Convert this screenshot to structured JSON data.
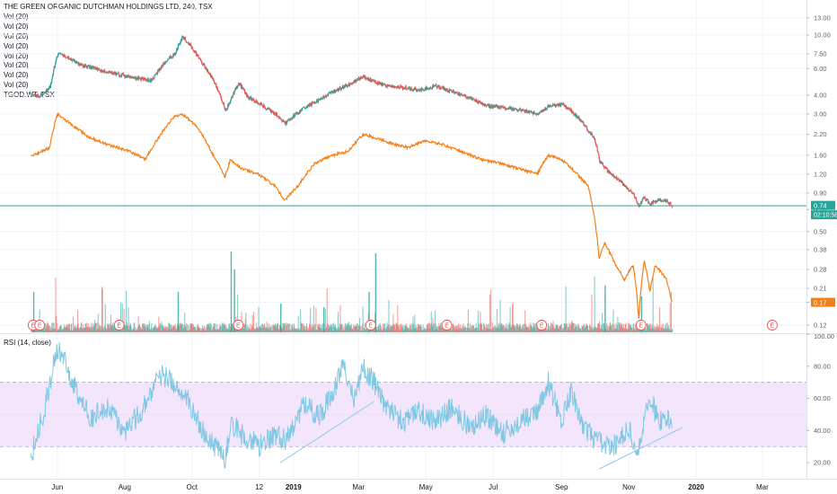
{
  "legend": {
    "title": "THE GREEN ORGANIC DUTCHMAN HOLDINGS LTD, 240, TSX",
    "vol_lines": [
      "Vol (20)",
      "Vol (20)",
      "Vol (20)",
      "Vol (20)",
      "Vol (20)",
      "Vol (20)",
      "Vol (20)",
      "Vol (20)"
    ],
    "compare_symbol": "TGOD.WT, TSX"
  },
  "rsi_legend": "RSI (14, close)",
  "price_badge": {
    "value": "0.74",
    "countdown": "02:10:58",
    "color": "#26a69a"
  },
  "compare_badge": {
    "value": "0.17",
    "color": "#f57f17"
  },
  "earnings_marker": "E",
  "colors": {
    "up": "#26a69a",
    "down": "#ef5350",
    "compare": "#f57f17",
    "rsi": "#7ec8e3",
    "rsi_band": "#f3e5fc",
    "trendline": "#90c6ea",
    "price_line": "#26a69a"
  },
  "chart_data": [
    {
      "type": "candlestick",
      "name": "THE GREEN ORGANIC DUTCHMAN HOLDINGS LTD",
      "scale": "log",
      "y_ticks": [
        "13.00",
        "10.00",
        "7.50",
        "6.00",
        "4.00",
        "3.00",
        "2.20",
        "1.60",
        "1.20",
        "0.90",
        "0.70",
        "0.50",
        "0.38",
        "0.28",
        "0.21",
        "0.17",
        "0.12"
      ],
      "x_ticks": [
        "Jun",
        "Aug",
        "Oct",
        "12",
        "2019",
        "Mar",
        "May",
        "Jul",
        "Sep",
        "Nov",
        "2020",
        "Mar"
      ],
      "x_range": [
        "2018-04-10",
        "2020-04-10"
      ],
      "close_keypoints": [
        [
          "2018-05-08",
          4.1
        ],
        [
          "2018-05-15",
          3.9
        ],
        [
          "2018-05-25",
          4.5
        ],
        [
          "2018-06-01",
          7.5
        ],
        [
          "2018-06-10",
          7.1
        ],
        [
          "2018-06-20",
          6.4
        ],
        [
          "2018-07-05",
          6.0
        ],
        [
          "2018-07-20",
          5.6
        ],
        [
          "2018-08-10",
          5.2
        ],
        [
          "2018-08-25",
          5.0
        ],
        [
          "2018-09-05",
          6.5
        ],
        [
          "2018-09-15",
          7.5
        ],
        [
          "2018-09-22",
          9.7
        ],
        [
          "2018-10-01",
          8.2
        ],
        [
          "2018-10-10",
          6.5
        ],
        [
          "2018-10-20",
          5.0
        ],
        [
          "2018-10-31",
          3.1
        ],
        [
          "2018-11-05",
          3.8
        ],
        [
          "2018-11-12",
          4.8
        ],
        [
          "2018-11-20",
          3.9
        ],
        [
          "2018-12-01",
          3.5
        ],
        [
          "2018-12-15",
          3.0
        ],
        [
          "2018-12-24",
          2.6
        ],
        [
          "2019-01-05",
          3.1
        ],
        [
          "2019-01-20",
          3.6
        ],
        [
          "2019-02-05",
          4.2
        ],
        [
          "2019-02-20",
          4.7
        ],
        [
          "2019-03-05",
          5.3
        ],
        [
          "2019-03-15",
          4.9
        ],
        [
          "2019-03-25",
          4.6
        ],
        [
          "2019-04-10",
          4.5
        ],
        [
          "2019-04-25",
          4.3
        ],
        [
          "2019-05-10",
          4.6
        ],
        [
          "2019-05-25",
          4.2
        ],
        [
          "2019-06-10",
          3.8
        ],
        [
          "2019-06-25",
          3.4
        ],
        [
          "2019-07-10",
          3.3
        ],
        [
          "2019-07-25",
          3.2
        ],
        [
          "2019-08-10",
          3.0
        ],
        [
          "2019-08-20",
          3.4
        ],
        [
          "2019-09-01",
          3.5
        ],
        [
          "2019-09-10",
          3.1
        ],
        [
          "2019-09-20",
          2.6
        ],
        [
          "2019-10-01",
          2.0
        ],
        [
          "2019-10-05",
          1.45
        ],
        [
          "2019-10-15",
          1.2
        ],
        [
          "2019-10-25",
          1.05
        ],
        [
          "2019-11-05",
          0.88
        ],
        [
          "2019-11-10",
          0.73
        ],
        [
          "2019-11-14",
          0.85
        ],
        [
          "2019-11-20",
          0.76
        ],
        [
          "2019-11-28",
          0.82
        ],
        [
          "2019-12-05",
          0.8
        ],
        [
          "2019-12-10",
          0.74
        ]
      ],
      "current_price": 0.74
    },
    {
      "type": "line",
      "name": "TGOD.WT, TSX",
      "keypoints": [
        [
          "2018-05-08",
          1.6
        ],
        [
          "2018-05-15",
          1.65
        ],
        [
          "2018-05-25",
          1.8
        ],
        [
          "2018-06-01",
          3.0
        ],
        [
          "2018-06-15",
          2.5
        ],
        [
          "2018-06-30",
          2.1
        ],
        [
          "2018-07-15",
          1.9
        ],
        [
          "2018-08-05",
          1.7
        ],
        [
          "2018-08-20",
          1.5
        ],
        [
          "2018-09-01",
          2.1
        ],
        [
          "2018-09-15",
          2.9
        ],
        [
          "2018-09-22",
          3.0
        ],
        [
          "2018-10-05",
          2.5
        ],
        [
          "2018-10-20",
          1.6
        ],
        [
          "2018-10-31",
          1.15
        ],
        [
          "2018-11-05",
          1.5
        ],
        [
          "2018-11-15",
          1.3
        ],
        [
          "2018-11-30",
          1.2
        ],
        [
          "2018-12-15",
          1.0
        ],
        [
          "2018-12-24",
          0.8
        ],
        [
          "2019-01-05",
          1.0
        ],
        [
          "2019-01-20",
          1.4
        ],
        [
          "2019-02-05",
          1.6
        ],
        [
          "2019-02-20",
          1.7
        ],
        [
          "2019-03-05",
          2.2
        ],
        [
          "2019-03-15",
          2.1
        ],
        [
          "2019-04-01",
          1.9
        ],
        [
          "2019-04-15",
          1.8
        ],
        [
          "2019-05-01",
          2.0
        ],
        [
          "2019-05-15",
          1.9
        ],
        [
          "2019-06-01",
          1.7
        ],
        [
          "2019-06-20",
          1.5
        ],
        [
          "2019-07-10",
          1.4
        ],
        [
          "2019-07-25",
          1.3
        ],
        [
          "2019-08-10",
          1.2
        ],
        [
          "2019-08-20",
          1.6
        ],
        [
          "2019-09-01",
          1.5
        ],
        [
          "2019-09-15",
          1.2
        ],
        [
          "2019-09-25",
          1.0
        ],
        [
          "2019-10-01",
          0.6
        ],
        [
          "2019-10-05",
          0.33
        ],
        [
          "2019-10-10",
          0.42
        ],
        [
          "2019-10-20",
          0.3
        ],
        [
          "2019-10-28",
          0.24
        ],
        [
          "2019-11-05",
          0.3
        ],
        [
          "2019-11-10",
          0.13
        ],
        [
          "2019-11-15",
          0.32
        ],
        [
          "2019-11-20",
          0.2
        ],
        [
          "2019-11-25",
          0.3
        ],
        [
          "2019-12-05",
          0.24
        ],
        [
          "2019-12-10",
          0.17
        ]
      ],
      "last_value": 0.17
    },
    {
      "type": "bar",
      "name": "Volume",
      "series_labels": [
        "Vol (20)"
      ]
    },
    {
      "type": "line",
      "name": "RSI (14, close)",
      "ylim": [
        10,
        100
      ],
      "y_ticks": [
        "100.00",
        "80.00",
        "60.00",
        "40.00",
        "20.00"
      ],
      "band": [
        30,
        70
      ],
      "keypoints": [
        [
          "2018-05-08",
          24
        ],
        [
          "2018-05-15",
          40
        ],
        [
          "2018-05-22",
          58
        ],
        [
          "2018-05-30",
          88
        ],
        [
          "2018-06-05",
          90
        ],
        [
          "2018-06-15",
          70
        ],
        [
          "2018-07-01",
          48
        ],
        [
          "2018-07-15",
          55
        ],
        [
          "2018-08-01",
          40
        ],
        [
          "2018-08-15",
          50
        ],
        [
          "2018-09-01",
          75
        ],
        [
          "2018-09-15",
          70
        ],
        [
          "2018-09-25",
          62
        ],
        [
          "2018-10-05",
          48
        ],
        [
          "2018-10-15",
          35
        ],
        [
          "2018-10-25",
          28
        ],
        [
          "2018-10-31",
          20
        ],
        [
          "2018-11-05",
          45
        ],
        [
          "2018-11-15",
          38
        ],
        [
          "2018-12-01",
          30
        ],
        [
          "2018-12-15",
          38
        ],
        [
          "2018-12-24",
          34
        ],
        [
          "2019-01-10",
          55
        ],
        [
          "2019-01-25",
          50
        ],
        [
          "2019-02-05",
          62
        ],
        [
          "2019-02-15",
          80
        ],
        [
          "2019-02-25",
          60
        ],
        [
          "2019-03-05",
          80
        ],
        [
          "2019-03-15",
          70
        ],
        [
          "2019-03-25",
          55
        ],
        [
          "2019-04-10",
          45
        ],
        [
          "2019-04-25",
          52
        ],
        [
          "2019-05-10",
          46
        ],
        [
          "2019-05-25",
          55
        ],
        [
          "2019-06-10",
          42
        ],
        [
          "2019-06-25",
          50
        ],
        [
          "2019-07-10",
          38
        ],
        [
          "2019-07-25",
          45
        ],
        [
          "2019-08-10",
          52
        ],
        [
          "2019-08-20",
          70
        ],
        [
          "2019-09-01",
          45
        ],
        [
          "2019-09-10",
          65
        ],
        [
          "2019-09-20",
          42
        ],
        [
          "2019-10-01",
          35
        ],
        [
          "2019-10-10",
          30
        ],
        [
          "2019-10-20",
          32
        ],
        [
          "2019-11-01",
          40
        ],
        [
          "2019-11-10",
          28
        ],
        [
          "2019-11-20",
          62
        ],
        [
          "2019-11-28",
          45
        ],
        [
          "2019-12-05",
          50
        ],
        [
          "2019-12-10",
          42
        ]
      ],
      "trendlines": [
        [
          [
            "2018-12-20",
            20
          ],
          [
            "2019-03-15",
            58
          ]
        ],
        [
          [
            "2019-10-05",
            16
          ],
          [
            "2019-12-20",
            42
          ]
        ]
      ]
    }
  ]
}
